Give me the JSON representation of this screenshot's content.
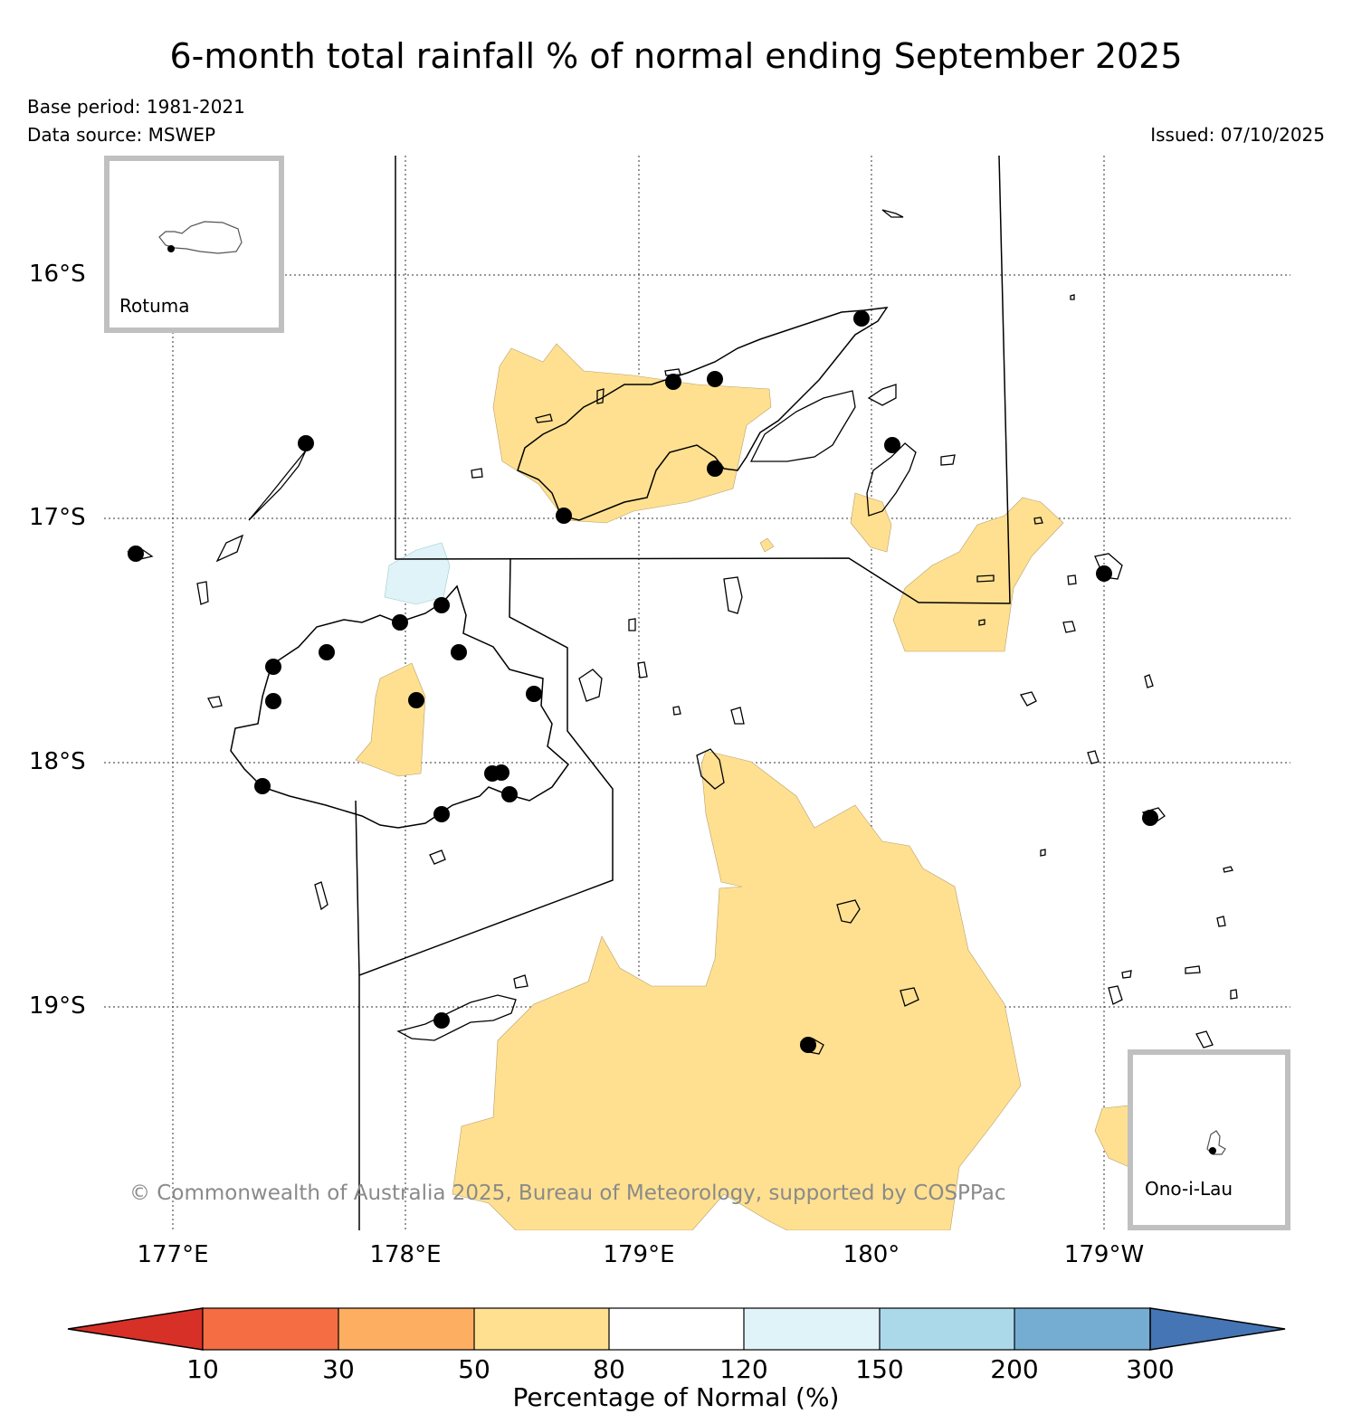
{
  "title": "6-month total rainfall % of normal ending September 2025",
  "base_period": "Base period: 1981-2021",
  "data_source": "Data source: MSWEP",
  "issued": "Issued: 07/10/2025",
  "copyright": "© Commonwealth of Australia 2025, Bureau of Meteorology, supported by COSPPac",
  "lat_labels": [
    "16°S",
    "17°S",
    "18°S",
    "19°S"
  ],
  "lon_labels": [
    "177°E",
    "178°E",
    "179°E",
    "180°",
    "179°W"
  ],
  "insets": {
    "rotuma": "Rotuma",
    "ono": "Ono-i-Lau"
  },
  "colorbar": {
    "label": "Percentage of Normal (%)",
    "ticks": [
      "10",
      "30",
      "50",
      "80",
      "120",
      "150",
      "200",
      "300"
    ],
    "colors": [
      "#d73027",
      "#f46d43",
      "#fdae61",
      "#fee090",
      "#ffffff",
      "#e0f3f8",
      "#abd9e9",
      "#74add1",
      "#4575b4"
    ]
  },
  "colors": {
    "below_normal_fill": "#fee090",
    "above_normal_fill": "#e0f3f8",
    "station_dot": "#000000"
  }
}
